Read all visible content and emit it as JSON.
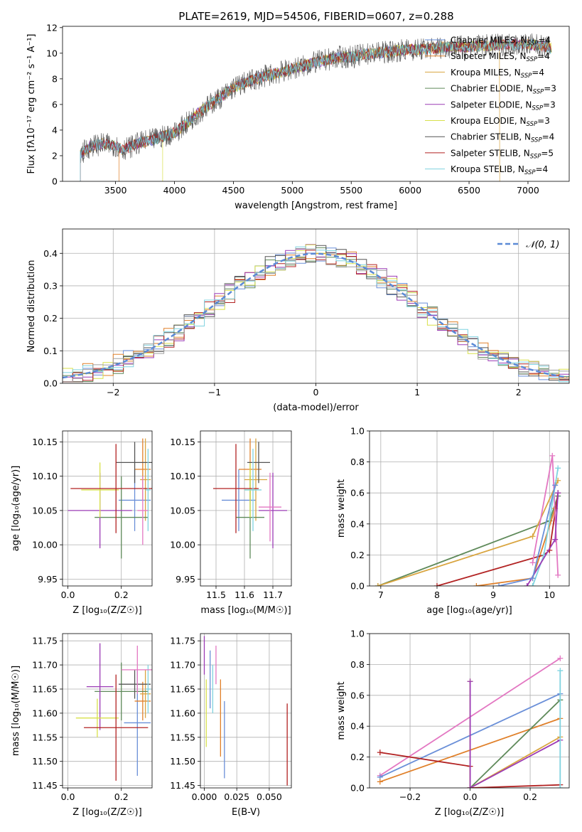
{
  "figure": {
    "title": "PLATE=2619, MJD=54506, FIBERID=0607, z=0.288"
  },
  "colors": {
    "grid": "#b0b0b0",
    "axis": "#000000"
  },
  "chart_data": [
    {
      "id": "spectrum",
      "type": "line",
      "xlabel": "wavelength [Angstrom, rest frame]",
      "ylabel": "Flux [fλ10⁻¹⁷ erg cm⁻² s⁻¹ A⁻¹]",
      "xlim": [
        3050,
        7350
      ],
      "ylim": [
        0,
        12.1
      ],
      "xticks": [
        3500,
        4000,
        4500,
        5000,
        5500,
        6000,
        6500,
        7000
      ],
      "yticks": [
        0,
        2,
        4,
        6,
        8,
        10,
        12
      ],
      "grid": false,
      "legend_position": "top-right",
      "legend": [
        {
          "label": "Chabrier MILES, N",
          "sub": "SSP",
          "tail": "=4",
          "color": "#6a8fd8"
        },
        {
          "label": "Salpeter MILES, N",
          "sub": "SSP",
          "tail": "=4",
          "color": "#e0802a"
        },
        {
          "label": "Kroupa MILES, N",
          "sub": "SSP",
          "tail": "=4",
          "color": "#d9a540"
        },
        {
          "label": "Chabrier ELODIE, N",
          "sub": "SSP",
          "tail": "=3",
          "color": "#5f8a5a"
        },
        {
          "label": "Salpeter ELODIE, N",
          "sub": "SSP",
          "tail": "=3",
          "color": "#9c3bb5"
        },
        {
          "label": "Kroupa ELODIE, N",
          "sub": "SSP",
          "tail": "=3",
          "color": "#d8e04a"
        },
        {
          "label": "Chabrier STELIB, N",
          "sub": "SSP",
          "tail": "=4",
          "color": "#555555"
        },
        {
          "label": "Salpeter STELIB, N",
          "sub": "SSP",
          "tail": "=5",
          "color": "#b22222"
        },
        {
          "label": "Kroupa STELIB, N",
          "sub": "SSP",
          "tail": "=4",
          "color": "#7fd3e0"
        }
      ],
      "envelope": {
        "x": [
          3200,
          3250,
          3300,
          3400,
          3500,
          3550,
          3600,
          3700,
          3800,
          3900,
          4000,
          4100,
          4200,
          4300,
          4400,
          4500,
          4600,
          4700,
          4800,
          4900,
          5000,
          5100,
          5200,
          5300,
          5400,
          5500,
          5600,
          5700,
          5800,
          5900,
          6000,
          6100,
          6200,
          6300,
          6400,
          6500,
          6600,
          6700,
          6800,
          6900,
          7000,
          7100,
          7200
        ],
        "y": [
          2.1,
          2.5,
          2.8,
          2.9,
          2.8,
          2.5,
          2.6,
          3.0,
          3.2,
          3.5,
          3.8,
          4.5,
          5.3,
          6.0,
          6.6,
          7.3,
          7.7,
          8.0,
          8.3,
          8.5,
          8.8,
          9.0,
          9.3,
          9.5,
          9.7,
          9.7,
          9.9,
          10.0,
          10.1,
          10.2,
          10.3,
          10.3,
          10.4,
          10.5,
          10.5,
          10.5,
          10.6,
          10.6,
          10.7,
          10.7,
          10.7,
          10.6,
          10.4
        ]
      }
    },
    {
      "id": "residuals",
      "type": "line",
      "xlabel": "(data-model)/error",
      "ylabel": "Normed distribution",
      "xlim": [
        -2.5,
        2.5
      ],
      "ylim": [
        0,
        0.475
      ],
      "xticks": [
        -2,
        -1,
        0,
        1,
        2
      ],
      "xtick_labels": [
        "−2",
        "−1",
        "0",
        "1",
        "2"
      ],
      "yticks": [
        0,
        0.1,
        0.2,
        0.3,
        0.4
      ],
      "ytick_labels": [
        "0.0",
        "0.1",
        "0.2",
        "0.3",
        "0.4"
      ],
      "grid": true,
      "legend_position": "top-right",
      "legend": [
        {
          "label": "𝒩(0, 1)",
          "color": "#5b8ad6"
        }
      ],
      "normal_mean": 0,
      "normal_sigma": 1
    },
    {
      "id": "age-vs-Z",
      "type": "scatter",
      "xlabel": "Z [log₁₀(Z/Z☉)]",
      "ylabel": "age  [log₁₀(age/yr)]",
      "xlim": [
        -0.02,
        0.315
      ],
      "ylim": [
        9.94,
        10.166
      ],
      "xticks": [
        0.0,
        0.2
      ],
      "xtick_labels": [
        "0.0",
        "0.2"
      ],
      "yticks": [
        9.95,
        10.0,
        10.05,
        10.1,
        10.15
      ],
      "ytick_labels": [
        "9.95",
        "10.00",
        "10.05",
        "10.10",
        "10.15"
      ],
      "grid": true,
      "points": [
        {
          "x": 0.25,
          "y": 10.065,
          "xerr": 0.06,
          "yerr": 0.045,
          "color": "#6a8fd8"
        },
        {
          "x": 0.28,
          "y": 10.11,
          "xerr": 0.03,
          "yerr": 0.045,
          "color": "#e0802a"
        },
        {
          "x": 0.29,
          "y": 10.095,
          "xerr": 0.02,
          "yerr": 0.06,
          "color": "#d9a540"
        },
        {
          "x": 0.2,
          "y": 10.04,
          "xerr": 0.1,
          "yerr": 0.06,
          "color": "#5f8a5a"
        },
        {
          "x": 0.12,
          "y": 10.05,
          "xerr": 0.12,
          "yerr": 0.055,
          "color": "#9c3bb5"
        },
        {
          "x": 0.12,
          "y": 10.08,
          "xerr": 0.07,
          "yerr": 0.04,
          "color": "#d8e04a"
        },
        {
          "x": 0.25,
          "y": 10.12,
          "xerr": 0.07,
          "yerr": 0.03,
          "color": "#555555"
        },
        {
          "x": 0.18,
          "y": 10.082,
          "xerr": 0.17,
          "yerr": 0.065,
          "color": "#b22222"
        },
        {
          "x": 0.3,
          "y": 10.08,
          "xerr": 0.01,
          "yerr": 0.06,
          "color": "#7fd3e0"
        },
        {
          "x": 0.28,
          "y": 10.05,
          "xerr": 0.02,
          "yerr": 0.05,
          "color": "#e377c2"
        }
      ]
    },
    {
      "id": "age-vs-mass",
      "type": "scatter",
      "xlabel": "mass [log₁₀(M/M☉)]",
      "ylabel": "",
      "xlim": [
        11.445,
        11.765
      ],
      "ylim": [
        9.94,
        10.166
      ],
      "xticks": [
        11.5,
        11.6,
        11.7
      ],
      "xtick_labels": [
        "11.5",
        "11.6",
        "11.7"
      ],
      "yticks": [
        9.95,
        10.0,
        10.05,
        10.1,
        10.15
      ],
      "ytick_labels": [
        "9.95",
        "10.00",
        "10.05",
        "10.10",
        "10.15"
      ],
      "grid": true,
      "points": [
        {
          "x": 11.58,
          "y": 10.065,
          "xerr": 0.06,
          "yerr": 0.045,
          "color": "#6a8fd8"
        },
        {
          "x": 11.62,
          "y": 10.11,
          "xerr": 0.04,
          "yerr": 0.045,
          "color": "#e0802a"
        },
        {
          "x": 11.64,
          "y": 10.095,
          "xerr": 0.04,
          "yerr": 0.06,
          "color": "#d9a540"
        },
        {
          "x": 11.62,
          "y": 10.04,
          "xerr": 0.05,
          "yerr": 0.06,
          "color": "#5f8a5a"
        },
        {
          "x": 11.7,
          "y": 10.05,
          "xerr": 0.05,
          "yerr": 0.055,
          "color": "#9c3bb5"
        },
        {
          "x": 11.62,
          "y": 10.08,
          "xerr": 0.02,
          "yerr": 0.04,
          "color": "#d8e04a"
        },
        {
          "x": 11.65,
          "y": 10.12,
          "xerr": 0.04,
          "yerr": 0.03,
          "color": "#555555"
        },
        {
          "x": 11.57,
          "y": 10.082,
          "xerr": 0.08,
          "yerr": 0.065,
          "color": "#b22222"
        },
        {
          "x": 11.63,
          "y": 10.08,
          "xerr": 0.03,
          "yerr": 0.06,
          "color": "#7fd3e0"
        },
        {
          "x": 11.69,
          "y": 10.055,
          "xerr": 0.04,
          "yerr": 0.05,
          "color": "#e377c2"
        }
      ]
    },
    {
      "id": "mass-weight-vs-age",
      "type": "line",
      "xlabel": "age  [log₁₀(age/yr)]",
      "ylabel": "mass weight",
      "xlim": [
        6.8,
        10.35
      ],
      "ylim": [
        0,
        1.0
      ],
      "xticks": [
        7,
        8,
        9,
        10
      ],
      "yticks": [
        0,
        0.2,
        0.4,
        0.6,
        0.8,
        1.0
      ],
      "ytick_labels": [
        "0.0",
        "0.2",
        "0.4",
        "0.6",
        "0.8",
        "1.0"
      ],
      "grid": true,
      "series": [
        {
          "color": "#5f8a5a",
          "x": [
            6.95,
            10.0,
            10.15
          ],
          "y": [
            0.0,
            0.42,
            0.58
          ]
        },
        {
          "color": "#d9a540",
          "x": [
            6.95,
            9.7,
            10.15
          ],
          "y": [
            0.0,
            0.32,
            0.68
          ]
        },
        {
          "color": "#e0802a",
          "x": [
            8.7,
            9.7,
            10.1
          ],
          "y": [
            0.0,
            0.05,
            0.5
          ]
        },
        {
          "color": "#b22222",
          "x": [
            8.0,
            9.9,
            10.0,
            10.15
          ],
          "y": [
            0.0,
            0.2,
            0.23,
            0.6
          ]
        },
        {
          "color": "#e377c2",
          "x": [
            9.7,
            10.05,
            10.15
          ],
          "y": [
            0.15,
            0.84,
            0.07
          ]
        },
        {
          "color": "#7fd3e0",
          "x": [
            9.7,
            9.9,
            10.15
          ],
          "y": [
            0.0,
            0.2,
            0.76
          ]
        },
        {
          "color": "#9c3bb5",
          "x": [
            9.6,
            10.1,
            10.15
          ],
          "y": [
            0.0,
            0.3,
            0.6
          ]
        },
        {
          "color": "#6a8fd8",
          "x": [
            9.1,
            9.7,
            10.1
          ],
          "y": [
            0.0,
            0.05,
            0.65
          ]
        }
      ]
    },
    {
      "id": "mass-vs-Z",
      "type": "scatter",
      "xlabel": "Z [log₁₀(Z/Z☉)]",
      "ylabel": "mass [log₁₀(M/M☉)]",
      "xlim": [
        -0.02,
        0.315
      ],
      "ylim": [
        11.445,
        11.765
      ],
      "xticks": [
        0.0,
        0.2
      ],
      "xtick_labels": [
        "0.0",
        "0.2"
      ],
      "yticks": [
        11.45,
        11.5,
        11.55,
        11.6,
        11.65,
        11.7,
        11.75
      ],
      "ytick_labels": [
        "11.45",
        "11.50",
        "11.55",
        "11.60",
        "11.65",
        "11.70",
        "11.75"
      ],
      "grid": true,
      "points": [
        {
          "x": 0.26,
          "y": 11.58,
          "xerr": 0.05,
          "yerr": 0.11,
          "color": "#6a8fd8"
        },
        {
          "x": 0.28,
          "y": 11.625,
          "xerr": 0.03,
          "yerr": 0.04,
          "color": "#e0802a"
        },
        {
          "x": 0.29,
          "y": 11.64,
          "xerr": 0.02,
          "yerr": 0.05,
          "color": "#d9a540"
        },
        {
          "x": 0.2,
          "y": 11.645,
          "xerr": 0.1,
          "yerr": 0.06,
          "color": "#5f8a5a"
        },
        {
          "x": 0.12,
          "y": 11.655,
          "xerr": 0.05,
          "yerr": 0.09,
          "color": "#9c3bb5"
        },
        {
          "x": 0.11,
          "y": 11.59,
          "xerr": 0.08,
          "yerr": 0.04,
          "color": "#d8e04a"
        },
        {
          "x": 0.25,
          "y": 11.66,
          "xerr": 0.06,
          "yerr": 0.03,
          "color": "#555555"
        },
        {
          "x": 0.18,
          "y": 11.57,
          "xerr": 0.12,
          "yerr": 0.11,
          "color": "#b22222"
        },
        {
          "x": 0.3,
          "y": 11.65,
          "xerr": 0.01,
          "yerr": 0.05,
          "color": "#7fd3e0"
        },
        {
          "x": 0.26,
          "y": 11.69,
          "xerr": 0.06,
          "yerr": 0.05,
          "color": "#e377c2"
        }
      ]
    },
    {
      "id": "mass-vs-EBV",
      "type": "scatter",
      "xlabel": "E(B-V)",
      "ylabel": "",
      "xlim": [
        -0.003,
        0.067
      ],
      "ylim": [
        11.445,
        11.765
      ],
      "xticks": [
        0.0,
        0.025,
        0.05
      ],
      "xtick_labels": [
        "0.000",
        "0.025",
        "0.050"
      ],
      "yticks": [
        11.45,
        11.5,
        11.55,
        11.6,
        11.65,
        11.7,
        11.75
      ],
      "ytick_labels": [
        "11.45",
        "11.50",
        "11.55",
        "11.60",
        "11.65",
        "11.70",
        "11.75"
      ],
      "grid": true,
      "points": [
        {
          "x": 0.0,
          "y": 11.72,
          "xerr": 0,
          "yerr": 0.04,
          "color": "#9c3bb5"
        },
        {
          "x": 0.0015,
          "y": 11.6,
          "xerr": 0,
          "yerr": 0.07,
          "color": "#d8e04a"
        },
        {
          "x": 0.0045,
          "y": 11.67,
          "xerr": 0,
          "yerr": 0.06,
          "color": "#6a8fd8"
        },
        {
          "x": 0.0065,
          "y": 11.65,
          "xerr": 0,
          "yerr": 0.05,
          "color": "#7fd3e0"
        },
        {
          "x": 0.009,
          "y": 11.7,
          "xerr": 0,
          "yerr": 0.04,
          "color": "#e377c2"
        },
        {
          "x": 0.0125,
          "y": 11.59,
          "xerr": 0,
          "yerr": 0.08,
          "color": "#e0802a"
        },
        {
          "x": 0.0155,
          "y": 11.545,
          "xerr": 0,
          "yerr": 0.08,
          "color": "#6a8fd8"
        },
        {
          "x": 0.0638,
          "y": 11.535,
          "xerr": 0,
          "yerr": 0.085,
          "color": "#b22222"
        }
      ]
    },
    {
      "id": "mass-weight-vs-Z",
      "type": "line",
      "xlabel": "Z [log₁₀(Z/Z☉)]",
      "ylabel": "mass weight",
      "xlim": [
        -0.335,
        0.33
      ],
      "ylim": [
        0,
        1.0
      ],
      "xticks": [
        -0.2,
        0.0,
        0.2
      ],
      "xtick_labels": [
        "−0.2",
        "0.0",
        "0.2"
      ],
      "yticks": [
        0,
        0.2,
        0.4,
        0.6,
        0.8,
        1.0
      ],
      "ytick_labels": [
        "0.0",
        "0.2",
        "0.4",
        "0.6",
        "0.8",
        "1.0"
      ],
      "grid": true,
      "series": [
        {
          "color": "#e377c2",
          "x": [
            -0.3,
            0.3
          ],
          "y": [
            0.08,
            0.84
          ]
        },
        {
          "color": "#6a8fd8",
          "x": [
            -0.3,
            0.3
          ],
          "y": [
            0.07,
            0.61
          ]
        },
        {
          "color": "#e0802a",
          "x": [
            -0.3,
            0.3
          ],
          "y": [
            0.04,
            0.45
          ]
        },
        {
          "color": "#5f8a5a",
          "x": [
            0.0,
            0.3
          ],
          "y": [
            0.0,
            0.57
          ]
        },
        {
          "color": "#d9a540",
          "x": [
            0.0,
            0.3
          ],
          "y": [
            0.0,
            0.33
          ]
        },
        {
          "color": "#9c3bb5",
          "x": [
            0.0,
            0.3
          ],
          "y": [
            0.0,
            0.31
          ]
        },
        {
          "color": "#b22222",
          "x": [
            -0.3,
            0.0,
            0.0,
            0.3
          ],
          "y": [
            0.23,
            0.14,
            0.0,
            0.02
          ]
        },
        {
          "color": "#7fd3e0",
          "x": [
            0.3,
            0.3
          ],
          "y": [
            0.0,
            0.76
          ]
        },
        {
          "color": "#d8e04a",
          "x": [
            0.0,
            0.0
          ],
          "y": [
            0.0,
            0.69
          ]
        },
        {
          "color": "#9c3bb5",
          "x": [
            0.0,
            0.0
          ],
          "y": [
            0.0,
            0.69
          ]
        }
      ]
    }
  ]
}
